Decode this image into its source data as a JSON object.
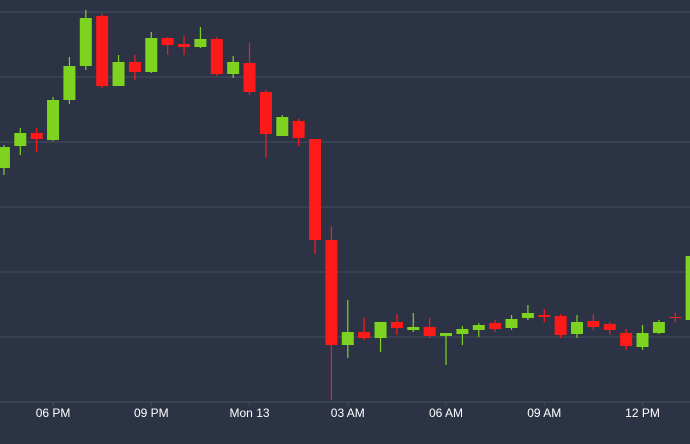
{
  "chart_data": {
    "type": "candlestick",
    "x": [
      16.5,
      17,
      17.5,
      18,
      18.5,
      19,
      19.5,
      20,
      20.5,
      21,
      21.5,
      22,
      22.5,
      23,
      23.5,
      24,
      24.5,
      25,
      25.5,
      26,
      26.5,
      27,
      27.5,
      28,
      28.5,
      29,
      29.5,
      30,
      30.5,
      31,
      31.5,
      32,
      32.5,
      33,
      33.5,
      34,
      34.5,
      35,
      35.5,
      36,
      36.5,
      37,
      37.5
    ],
    "open": [
      234,
      256,
      269,
      262,
      302,
      336,
      386,
      316,
      340,
      330,
      364,
      358,
      355,
      363,
      328,
      339,
      310,
      266,
      281,
      263,
      162,
      57,
      70,
      64,
      80,
      72,
      75,
      66,
      68,
      72,
      79,
      74,
      84,
      87,
      86,
      68,
      81,
      78,
      69,
      55,
      69,
      85,
      82
    ],
    "high": [
      257,
      274,
      274,
      305,
      345,
      392,
      388,
      347,
      347,
      370,
      365,
      366,
      375,
      365,
      346,
      359,
      312,
      287,
      283,
      263,
      176,
      102,
      84,
      80,
      88,
      89,
      84,
      69,
      76,
      79,
      82,
      87,
      97,
      93,
      88,
      87,
      88,
      80,
      73,
      77,
      82,
      89,
      152
    ],
    "low": [
      227,
      247,
      250,
      261,
      298,
      332,
      314,
      316,
      322,
      329,
      347,
      347,
      354,
      326,
      324,
      307,
      244,
      266,
      256,
      148,
      2,
      44,
      62,
      50,
      67,
      70,
      64,
      37,
      57,
      65,
      70,
      72,
      82,
      80,
      64,
      64,
      72,
      67,
      52,
      52,
      68,
      80,
      80
    ],
    "close": [
      255,
      269,
      263,
      302,
      336,
      384,
      316,
      340,
      330,
      364,
      357,
      355,
      363,
      328,
      340,
      310,
      268,
      285,
      264,
      162,
      57,
      70,
      64,
      80,
      74,
      75,
      66,
      69,
      73,
      77,
      73,
      83,
      89,
      85,
      67,
      80,
      75,
      72,
      56,
      69,
      80,
      84,
      146
    ],
    "up_color": "#7ed321",
    "down_color": "#ff1a1a",
    "xlim": [
      16.38,
      37.45
    ],
    "xticks": [
      {
        "value": 18,
        "label": "06 PM"
      },
      {
        "value": 21,
        "label": "09 PM"
      },
      {
        "value": 24,
        "label": "Mon 13"
      },
      {
        "value": 27,
        "label": "03 AM"
      },
      {
        "value": 30,
        "label": "06 AM"
      },
      {
        "value": 33,
        "label": "09 AM"
      },
      {
        "value": 36,
        "label": "12 PM"
      }
    ],
    "ylim": [
      0,
      402
    ],
    "yticks": [
      0,
      65,
      130,
      195,
      260,
      325,
      390
    ],
    "grid": true
  }
}
